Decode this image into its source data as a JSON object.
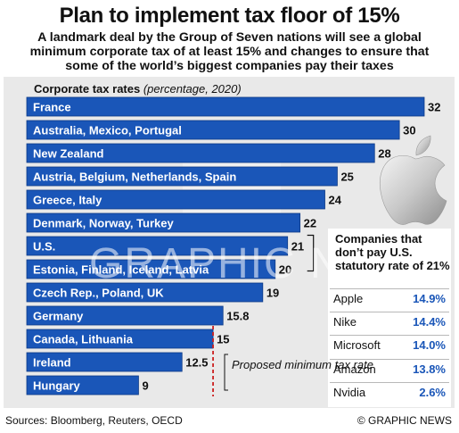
{
  "header": {
    "title": "Plan to implement tax floor of 15%",
    "subtitle": "A landmark deal by the Group of Seven nations will see a global minimum corporate tax of at least 15% and changes to ensure that some of the world’s biggest companies pay their taxes"
  },
  "chart_label": {
    "bold": "Corporate tax rates",
    "italic": "(percentage, 2020)"
  },
  "chart_data": {
    "type": "bar",
    "orientation": "horizontal",
    "categories": [
      "France",
      "Australia, Mexico, Portugal",
      "New Zealand",
      "Austria, Belgium, Netherlands, Spain",
      "Greece, Italy",
      "Denmark, Norway, Turkey",
      "U.S.",
      "Estonia, Finland, Iceland, Latvia",
      "Czech Rep., Poland, UK",
      "Germany",
      "Canada, Lithuania",
      "Ireland",
      "Hungary"
    ],
    "values": [
      32,
      30,
      28,
      25,
      24,
      22,
      21,
      20,
      19,
      15.8,
      15,
      12.5,
      9
    ],
    "value_labels": [
      "32",
      "30",
      "28",
      "25",
      "24",
      "22",
      "21",
      "20",
      "19",
      "15.8",
      "15",
      "12.5",
      "9"
    ],
    "reference_line": {
      "value": 15,
      "label": "Proposed minimum tax rate",
      "style": "dashed",
      "color": "#cc1f1f"
    },
    "xlim": [
      0,
      32
    ],
    "bar_color": "#1a56b8"
  },
  "side_panel": {
    "heading": "Companies that don’t pay U.S. statutory rate of 21%",
    "rows": [
      {
        "company": "Apple",
        "rate": "14.9%"
      },
      {
        "company": "Nike",
        "rate": "14.4%"
      },
      {
        "company": "Microsoft",
        "rate": "14.0%"
      },
      {
        "company": "Amazon",
        "rate": "13.8%"
      },
      {
        "company": "Nvidia",
        "rate": "2.6%"
      }
    ],
    "logo_icon": "apple-logo-icon"
  },
  "watermark": {
    "text": "GRAPHIC NEWS",
    "logo_icon": "gn-logo-icon"
  },
  "footer": {
    "sources": "Sources:  Bloomberg, Reuters, OECD",
    "credit": "© GRAPHIC NEWS"
  }
}
